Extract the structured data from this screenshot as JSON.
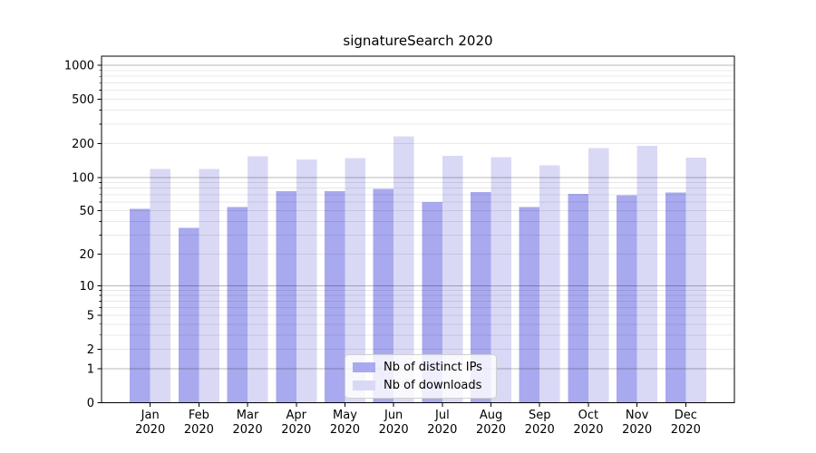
{
  "figure": {
    "title": "signatureSearch 2020"
  },
  "colors": {
    "bar_distinct_ips": "#a9a9ef",
    "bar_downloads": "#d9d9f6",
    "grid_major": "rgba(0,0,0,0.28)",
    "grid_minor": "rgba(0,0,0,0.09)",
    "axis": "#000000",
    "text": "#000000",
    "legend_border": "#d0d0d0"
  },
  "chart_data": {
    "type": "bar",
    "title": "signatureSearch 2020",
    "categories": [
      "Jan 2020",
      "Feb 2020",
      "Mar 2020",
      "Apr 2020",
      "May 2020",
      "Jun 2020",
      "Jul 2020",
      "Aug 2020",
      "Sep 2020",
      "Oct 2020",
      "Nov 2020",
      "Dec 2020"
    ],
    "series": [
      {
        "name": "Nb of distinct IPs",
        "color": "#a9a9ef",
        "values": [
          52,
          35,
          54,
          75,
          75,
          79,
          60,
          74,
          54,
          71,
          69,
          73
        ]
      },
      {
        "name": "Nb of downloads",
        "color": "#d9d9f6",
        "values": [
          119,
          119,
          154,
          145,
          149,
          234,
          156,
          151,
          128,
          183,
          191,
          150
        ]
      }
    ],
    "yscale": "log1p",
    "y_tick_labels": [
      "1000",
      "500",
      "200",
      "100",
      "50",
      "20",
      "10",
      "5",
      "2",
      "1",
      "0"
    ],
    "y_tick_values": [
      1000,
      500,
      200,
      100,
      50,
      20,
      10,
      5,
      2,
      1,
      0
    ],
    "ylim": [
      0,
      1290
    ],
    "xlabel": "",
    "ylabel": "",
    "grid": "horizontal",
    "legend_position": "lower-center-inside"
  }
}
